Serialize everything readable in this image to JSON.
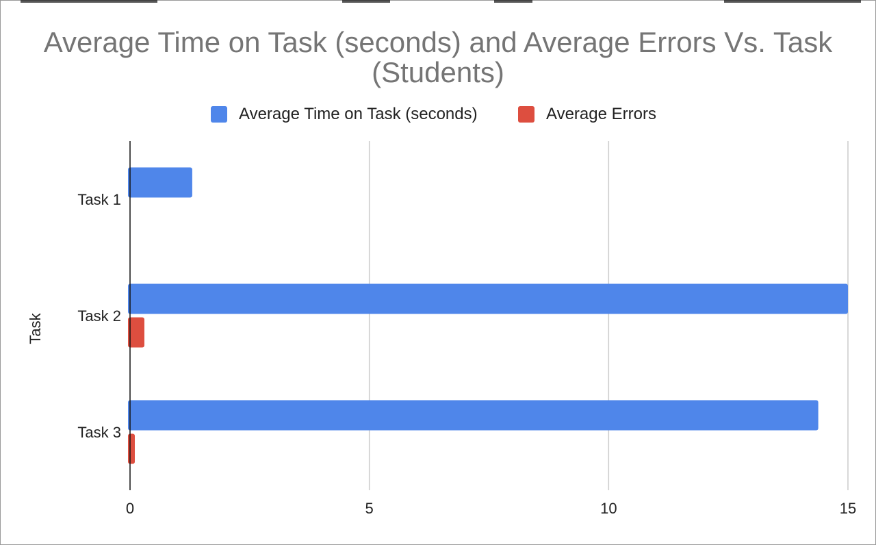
{
  "chart_data": {
    "type": "bar",
    "orientation": "horizontal",
    "title": "Average Time on Task (seconds) and Average Errors Vs. Task (Students)",
    "title_lines": [
      "Average Time on Task (seconds) and Average Errors Vs. Task",
      "(Students)"
    ],
    "categories": [
      "Task 1",
      "Task 2",
      "Task 3"
    ],
    "series": [
      {
        "name": "Average Time on Task (seconds)",
        "color": "#4f86ea",
        "values": [
          1.3,
          15,
          14.38
        ]
      },
      {
        "name": "Average Errors",
        "color": "#dd4e3f",
        "values": [
          0,
          0.3,
          0.1
        ]
      }
    ],
    "xlim": [
      0,
      15
    ],
    "xticks": [
      0,
      5,
      10,
      15
    ],
    "xlabel": "",
    "ylabel": "Task",
    "grid": true,
    "legend": "top"
  }
}
